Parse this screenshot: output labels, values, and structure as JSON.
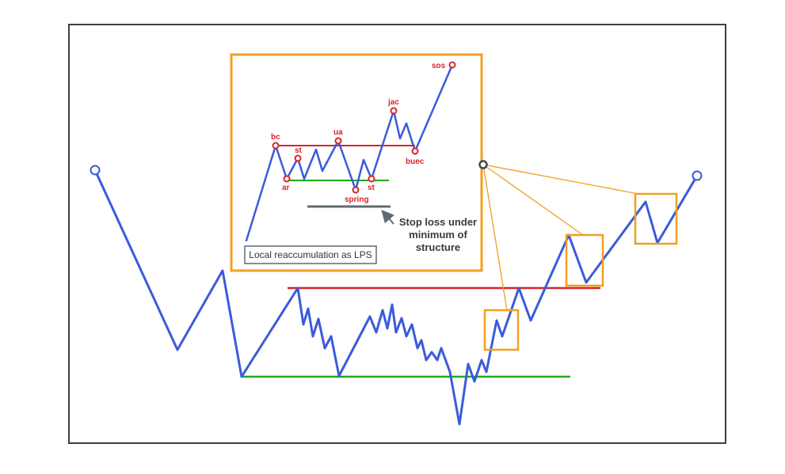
{
  "colors": {
    "price_line": "#3b5bdb",
    "resistance": "#d8232a",
    "support": "#22a61f",
    "highlight_box": "#f0a020",
    "label_text": "#d8232a",
    "stop_line": "#5f6b73",
    "frame": "#3f3f3f"
  },
  "inset": {
    "labels": {
      "bc": "bc",
      "st1": "st",
      "ar": "ar",
      "ua": "ua",
      "spring": "spring",
      "st2": "st",
      "jac": "jac",
      "buec": "buec",
      "sos": "sos"
    },
    "stop_note": [
      "Stop loss under",
      "minimum of",
      "structure"
    ],
    "caption": "Local reaccumulation as LPS"
  },
  "icons": {
    "start_marker": "open-circle-icon",
    "end_marker": "open-circle-icon",
    "callout_pivot": "pivot-dot-icon",
    "stop_arrow": "arrow-icon"
  }
}
